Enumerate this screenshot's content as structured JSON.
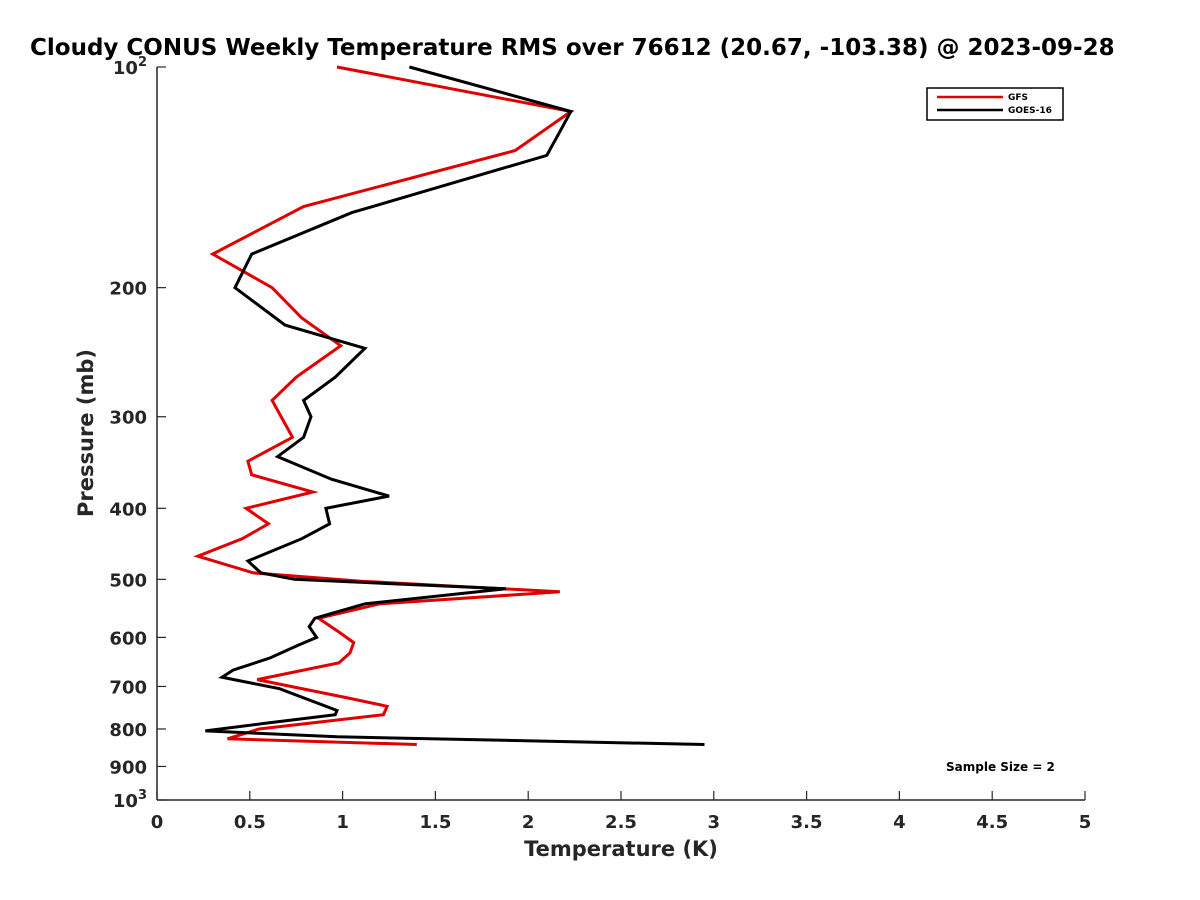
{
  "chart_data": {
    "type": "line",
    "title": "Cloudy CONUS Weekly Temperature RMS over 76612 (20.67, -103.38) @ 2023-09-28",
    "xlabel": "Temperature (K)",
    "ylabel": "Pressure (mb)",
    "xlim": [
      0,
      5
    ],
    "ylim": [
      100,
      1000
    ],
    "yscale": "log",
    "y_reversed": true,
    "grid": false,
    "legend_position": "top-right",
    "x_ticks": [
      0,
      0.5,
      1,
      1.5,
      2,
      2.5,
      3,
      3.5,
      4,
      4.5,
      5
    ],
    "x_tick_labels": [
      "0",
      "0.5",
      "1",
      "1.5",
      "2",
      "2.5",
      "3",
      "3.5",
      "4",
      "4.5",
      "5"
    ],
    "y_ticks": [
      200,
      300,
      400,
      500,
      600,
      700,
      800,
      900
    ],
    "y_tick_labels": [
      "200",
      "300",
      "400",
      "500",
      "600",
      "700",
      "800",
      "900"
    ],
    "y_minmax_labels": [
      {
        "value": 100,
        "base": "10",
        "exp": "2"
      },
      {
        "value": 1000,
        "base": "10",
        "exp": "3"
      }
    ],
    "annotation": "Sample Size = 2",
    "series": [
      {
        "name": "GFS",
        "color": "#e00000",
        "points": [
          {
            "x": 0.97,
            "p": 100
          },
          {
            "x": 2.23,
            "p": 115
          },
          {
            "x": 1.93,
            "p": 130
          },
          {
            "x": 0.79,
            "p": 155
          },
          {
            "x": 0.3,
            "p": 180
          },
          {
            "x": 0.62,
            "p": 200
          },
          {
            "x": 0.78,
            "p": 220
          },
          {
            "x": 0.99,
            "p": 240
          },
          {
            "x": 0.75,
            "p": 265
          },
          {
            "x": 0.62,
            "p": 285
          },
          {
            "x": 0.73,
            "p": 320
          },
          {
            "x": 0.49,
            "p": 345
          },
          {
            "x": 0.51,
            "p": 360
          },
          {
            "x": 0.84,
            "p": 380
          },
          {
            "x": 0.48,
            "p": 400
          },
          {
            "x": 0.6,
            "p": 420
          },
          {
            "x": 0.46,
            "p": 440
          },
          {
            "x": 0.22,
            "p": 465
          },
          {
            "x": 0.52,
            "p": 490
          },
          {
            "x": 1.1,
            "p": 503
          },
          {
            "x": 2.17,
            "p": 520
          },
          {
            "x": 1.2,
            "p": 540
          },
          {
            "x": 0.87,
            "p": 565
          },
          {
            "x": 0.98,
            "p": 590
          },
          {
            "x": 1.06,
            "p": 610
          },
          {
            "x": 1.04,
            "p": 630
          },
          {
            "x": 0.98,
            "p": 650
          },
          {
            "x": 0.54,
            "p": 685
          },
          {
            "x": 1.02,
            "p": 725
          },
          {
            "x": 1.24,
            "p": 745
          },
          {
            "x": 1.22,
            "p": 765
          },
          {
            "x": 0.55,
            "p": 800
          },
          {
            "x": 0.38,
            "p": 825
          },
          {
            "x": 1.4,
            "p": 840
          }
        ]
      },
      {
        "name": "GOES-16",
        "color": "#000000",
        "points": [
          {
            "x": 1.36,
            "p": 100
          },
          {
            "x": 2.23,
            "p": 115
          },
          {
            "x": 2.1,
            "p": 132
          },
          {
            "x": 1.05,
            "p": 158
          },
          {
            "x": 0.51,
            "p": 180
          },
          {
            "x": 0.42,
            "p": 200
          },
          {
            "x": 0.69,
            "p": 225
          },
          {
            "x": 1.12,
            "p": 242
          },
          {
            "x": 0.96,
            "p": 265
          },
          {
            "x": 0.79,
            "p": 285
          },
          {
            "x": 0.83,
            "p": 300
          },
          {
            "x": 0.79,
            "p": 320
          },
          {
            "x": 0.65,
            "p": 340
          },
          {
            "x": 0.94,
            "p": 365
          },
          {
            "x": 1.25,
            "p": 385
          },
          {
            "x": 0.91,
            "p": 400
          },
          {
            "x": 0.93,
            "p": 420
          },
          {
            "x": 0.78,
            "p": 440
          },
          {
            "x": 0.49,
            "p": 472
          },
          {
            "x": 0.56,
            "p": 490
          },
          {
            "x": 0.74,
            "p": 500
          },
          {
            "x": 1.88,
            "p": 515
          },
          {
            "x": 1.12,
            "p": 540
          },
          {
            "x": 0.85,
            "p": 565
          },
          {
            "x": 0.82,
            "p": 580
          },
          {
            "x": 0.86,
            "p": 600
          },
          {
            "x": 0.76,
            "p": 615
          },
          {
            "x": 0.61,
            "p": 640
          },
          {
            "x": 0.41,
            "p": 665
          },
          {
            "x": 0.35,
            "p": 680
          },
          {
            "x": 0.66,
            "p": 705
          },
          {
            "x": 0.97,
            "p": 755
          },
          {
            "x": 0.96,
            "p": 765
          },
          {
            "x": 0.6,
            "p": 785
          },
          {
            "x": 0.26,
            "p": 805
          },
          {
            "x": 0.97,
            "p": 820
          },
          {
            "x": 2.95,
            "p": 840
          }
        ]
      }
    ]
  }
}
